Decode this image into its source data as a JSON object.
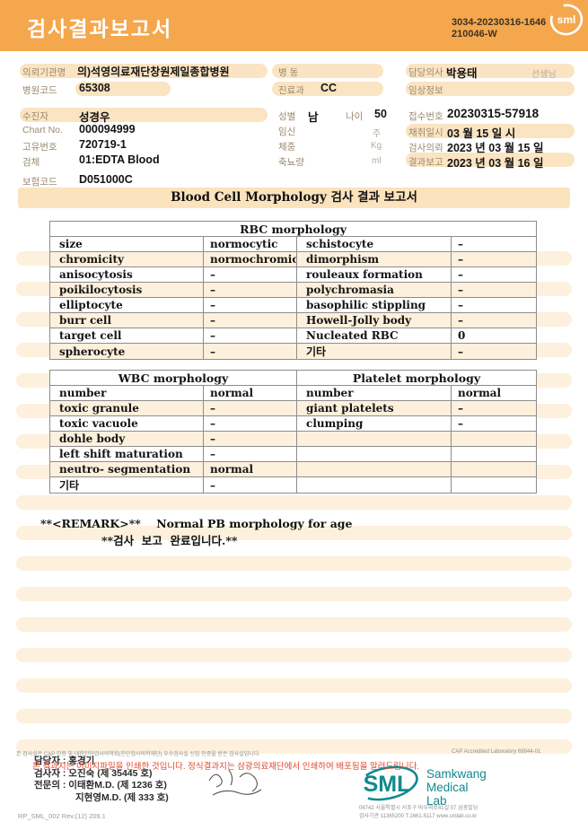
{
  "header": {
    "title": "검사결과보고서",
    "report_no_line1": "3034-20230316-1646",
    "report_no_line2": "210046-W",
    "logo_text": "sml"
  },
  "info": {
    "requesting_org": {
      "label": "의뢰기관명",
      "value": "의)석영의료재단창원제일종합병원"
    },
    "hospital_code": {
      "label": "병원코드",
      "value": "65308"
    },
    "patient": {
      "label": "수진자",
      "value": "성경우"
    },
    "chart_no": {
      "label": "Chart No.",
      "value": "000094999"
    },
    "unique_no": {
      "label": "고유번호",
      "value": "720719-1"
    },
    "specimen": {
      "label": "검체",
      "value": "01:EDTA Blood"
    },
    "insurance_code": {
      "label": "보험코드",
      "value": "D051000C"
    },
    "ward": {
      "label": "병 동",
      "value": ""
    },
    "department": {
      "label": "진료과",
      "value": "CC"
    },
    "sex": {
      "label": "성별",
      "value": "남"
    },
    "age": {
      "label": "나이",
      "value": "50"
    },
    "pregnancy": {
      "label": "임신",
      "unit": "주"
    },
    "weight": {
      "label": "체중",
      "unit": "Kg"
    },
    "urine": {
      "label": "축뇨량",
      "unit": "ml"
    },
    "doctor": {
      "label": "담당의사",
      "value": "박용태",
      "suffix": "선생님"
    },
    "clinical_info": {
      "label": "임상정보",
      "value": ""
    },
    "receipt_no": {
      "label": "접수번호",
      "value": "20230315-57918"
    },
    "collected": {
      "label": "채취일시",
      "value": "03 월 15 일 시"
    },
    "requested": {
      "label": "검사의뢰",
      "value": "2023 년 03 월 15 일"
    },
    "reported": {
      "label": "결과보고",
      "value": "2023 년 03 월 16 일"
    }
  },
  "section_title": "Blood Cell Morphology 검사 결과 보고서",
  "rbc_table": {
    "title": "RBC morphology",
    "rows": [
      [
        "size",
        "normocytic",
        "schistocyte",
        "–"
      ],
      [
        "chromicity",
        "normochromic",
        "dimorphism",
        "–"
      ],
      [
        "anisocytosis",
        "–",
        "rouleaux formation",
        "–"
      ],
      [
        "poikilocytosis",
        "–",
        "polychromasia",
        "–"
      ],
      [
        "elliptocyte",
        "–",
        "basophilic stippling",
        "–"
      ],
      [
        "burr cell",
        "–",
        "Howell-Jolly body",
        "–"
      ],
      [
        "target cell",
        "–",
        "Nucleated RBC",
        "0"
      ],
      [
        "spherocyte",
        "–",
        "기타",
        "–"
      ]
    ]
  },
  "wbc_table": {
    "title_left": "WBC morphology",
    "title_right": "Platelet morphology",
    "rows": [
      [
        "number",
        "normal",
        "number",
        "normal"
      ],
      [
        "toxic granule",
        "–",
        "giant platelets",
        "–"
      ],
      [
        "toxic vacuole",
        "–",
        "clumping",
        "–"
      ],
      [
        "dohle body",
        "–",
        "",
        ""
      ],
      [
        "left shift maturation",
        "–",
        "",
        ""
      ],
      [
        "neutro- segmentation",
        "normal",
        "",
        ""
      ],
      [
        "기타",
        "–",
        "",
        ""
      ]
    ]
  },
  "remark": {
    "line1": "**<REMARK>**    Normal PB morphology for age",
    "line2": "**검사  보고  완료입니다.**"
  },
  "footer": {
    "accreditation_note": "본 검사실은 CAP 인증 및 대한진단검사의학회(진단검사의학재단) 우수검사실 신임 인증을 받은 검사실입니다.",
    "cap_text": "CAP Accredited Laboratory 69944-01",
    "notice": "본 결과지는 이미지파일을 인쇄한 것입니다. 정식결과지는 삼광의료재단에서 인쇄하여 배포됨을 알려드립니다.",
    "staff_lines": [
      "담당자 : 홍경기",
      "검사자 : 오진숙 (제 35445 호)",
      "전문의 : 이태환M.D. (제 1236 호)",
      "지현영M.D. (제 333 호)"
    ],
    "logo": {
      "sml": "SML",
      "name_line1": "Samkwang",
      "name_line2": "Medical Lab",
      "address": "06742 서울특별시 서초구 바우뫼로41길 57 삼광빌딩",
      "contact": "검사기관 11365200 T.1661-5117 www.smlab.co.kr"
    },
    "doc_code": "RP_SML_002 Rev.(12) 209.1"
  },
  "colors": {
    "header_orange": "#F5A74E",
    "chip_peach": "#FBE4C2",
    "stripe_peach": "#FDF0DC",
    "section_bar_peach": "#FBE3BE",
    "brand_teal": "#12898D",
    "notice_red": "#E2472E"
  }
}
